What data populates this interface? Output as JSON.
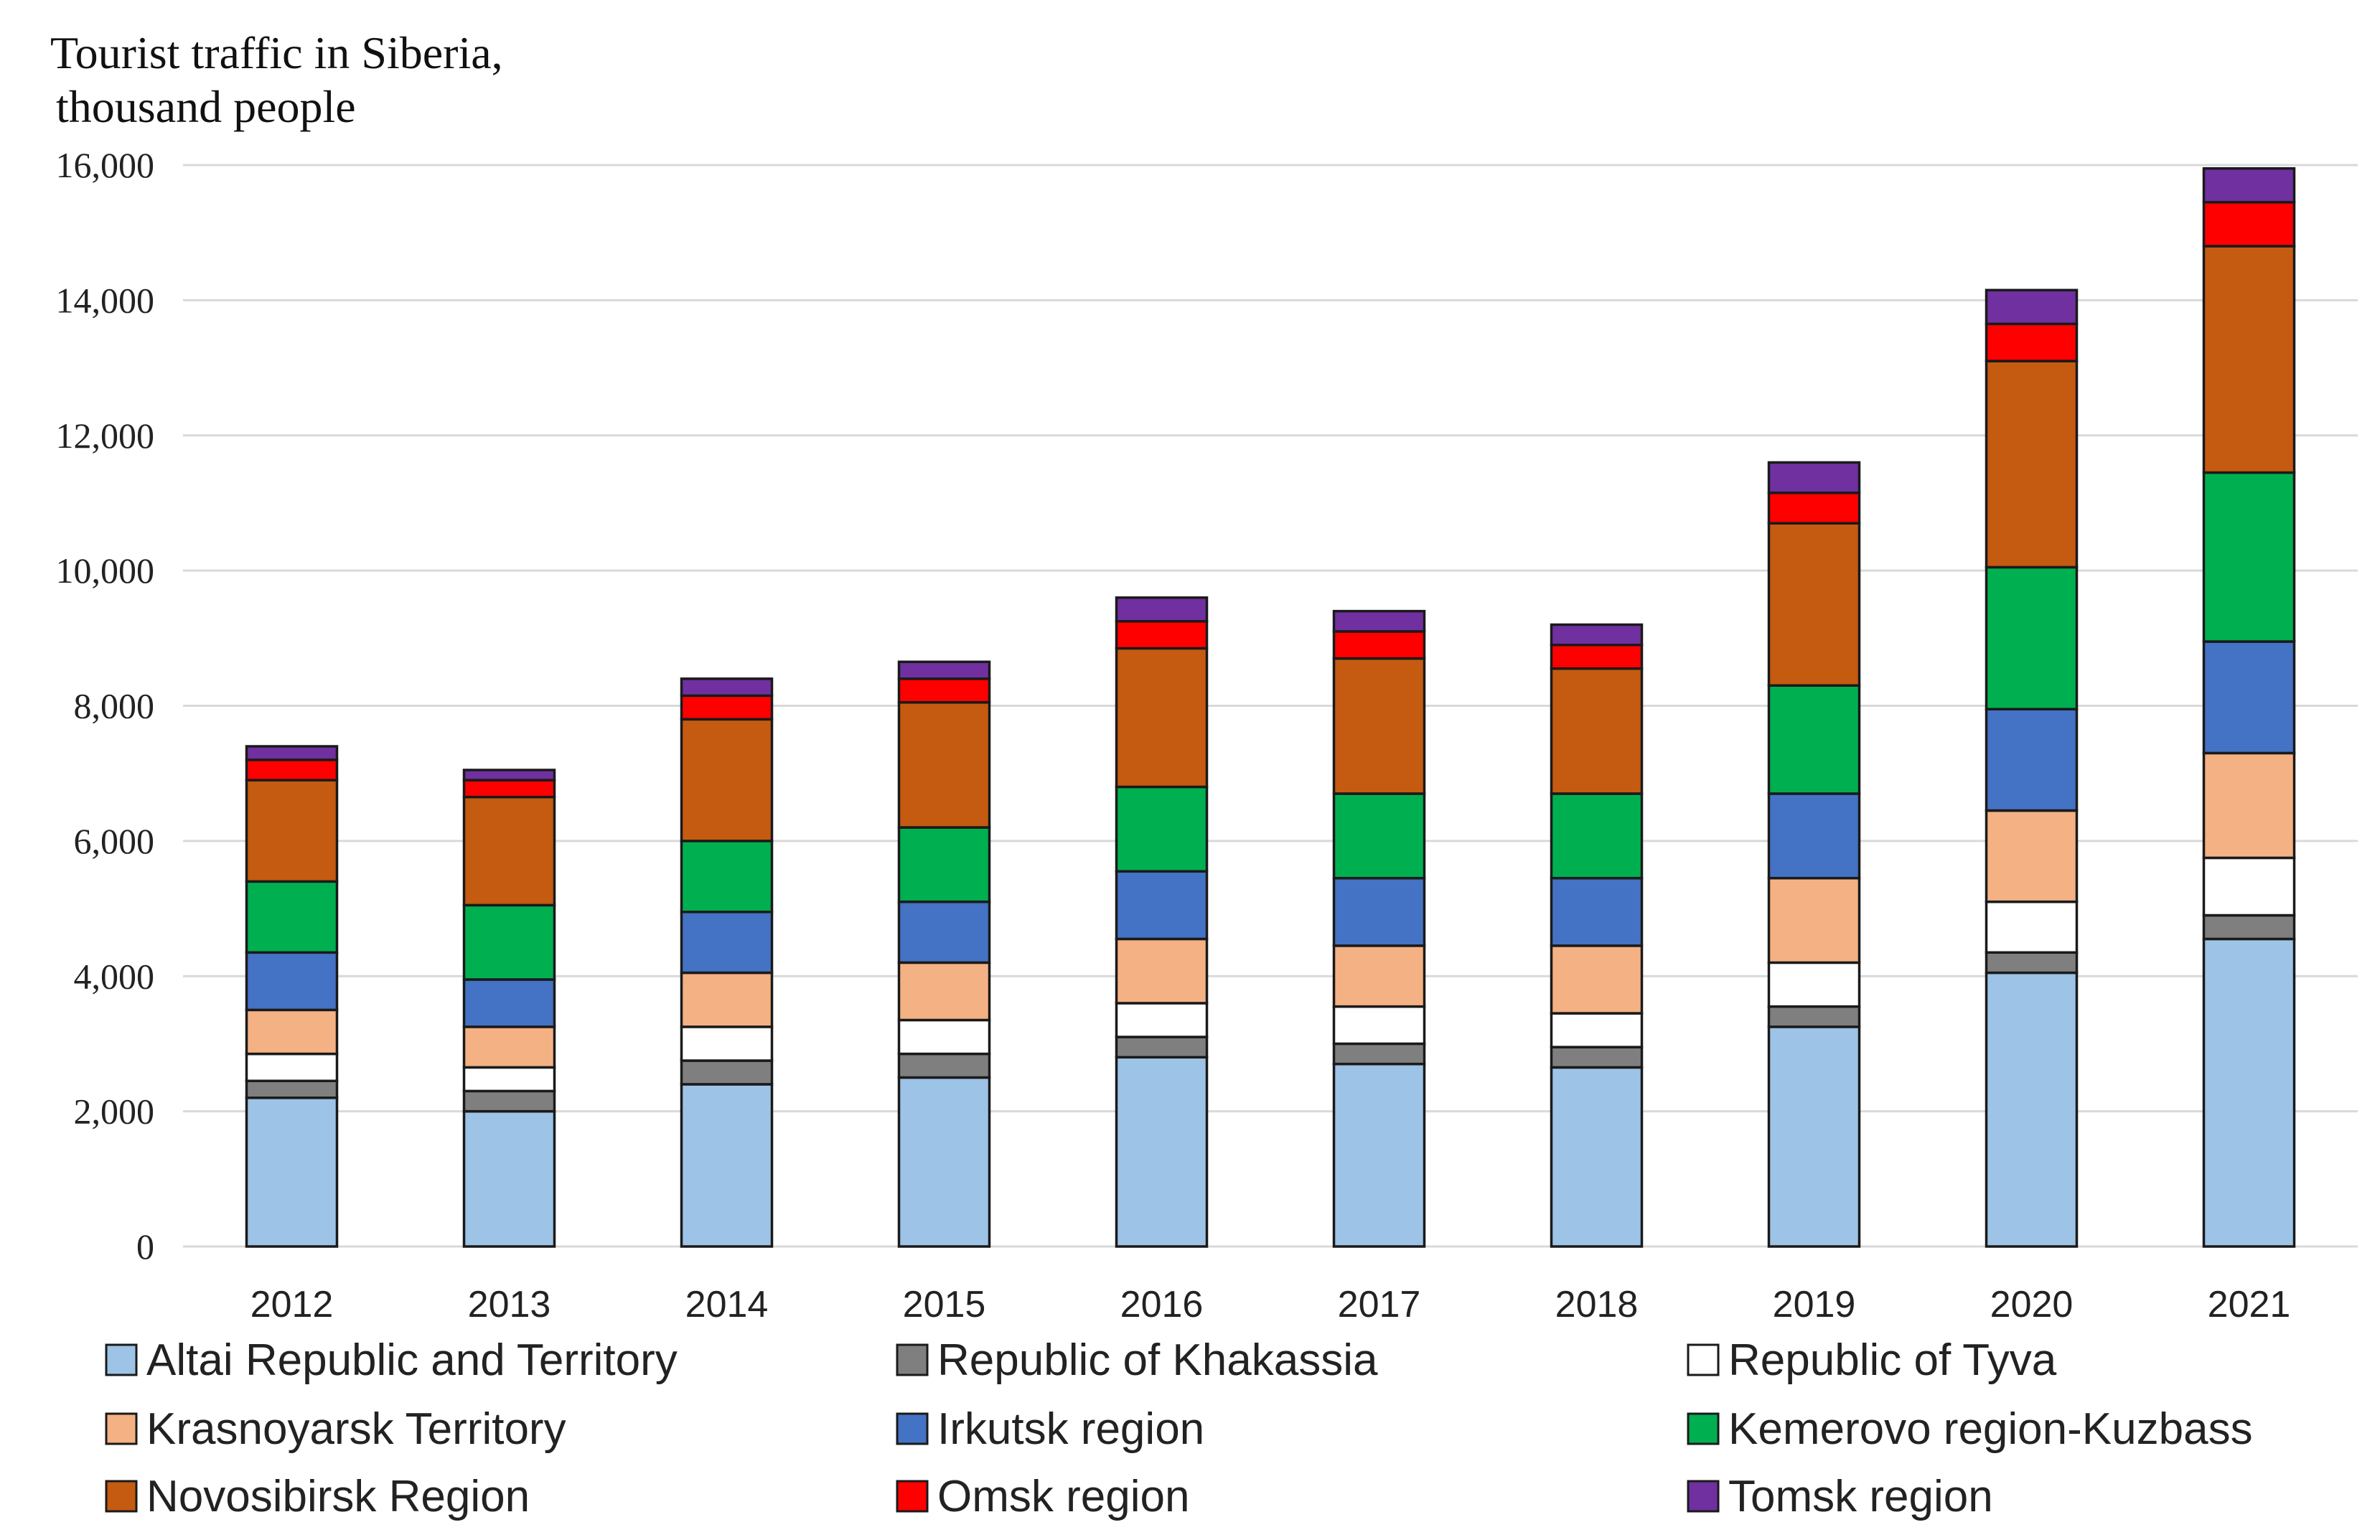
{
  "chart_data": {
    "type": "bar",
    "stacked": true,
    "title": "Tourist traffic in Siberia,",
    "title_line2": "thousand people",
    "xlabel": "",
    "ylabel": "",
    "ylim": [
      0,
      16000
    ],
    "yticks": [
      0,
      2000,
      4000,
      6000,
      8000,
      10000,
      12000,
      14000,
      16000
    ],
    "ytick_labels": [
      "0",
      "2,000",
      "4,000",
      "6,000",
      "8,000",
      "10,000",
      "12,000",
      "14,000",
      "16,000"
    ],
    "grid": true,
    "legend_position": "bottom",
    "categories": [
      "2012",
      "2013",
      "2014",
      "2015",
      "2016",
      "2017",
      "2018",
      "2019",
      "2020",
      "2021"
    ],
    "series": [
      {
        "name": "Altai Republic and Territory",
        "color": "#9dc3e6",
        "values": [
          2200,
          2000,
          2400,
          2500,
          2800,
          2700,
          2650,
          3250,
          4050,
          4550
        ]
      },
      {
        "name": "Republic of Khakassia",
        "color": "#7f7f7f",
        "values": [
          250,
          300,
          350,
          350,
          300,
          300,
          300,
          300,
          300,
          350
        ]
      },
      {
        "name": "Republic of Tyva",
        "color": "#ffffff",
        "values": [
          400,
          350,
          500,
          500,
          500,
          550,
          500,
          650,
          750,
          850
        ]
      },
      {
        "name": "Krasnoyarsk Territory",
        "color": "#f4b183",
        "values": [
          650,
          600,
          800,
          850,
          950,
          900,
          1000,
          1250,
          1350,
          1550
        ]
      },
      {
        "name": "Irkutsk region",
        "color": "#4472c4",
        "values": [
          850,
          700,
          900,
          900,
          1000,
          1000,
          1000,
          1250,
          1500,
          1650
        ]
      },
      {
        "name": "Kemerovo region-Kuzbass",
        "color": "#00b050",
        "values": [
          1050,
          1100,
          1050,
          1100,
          1250,
          1250,
          1250,
          1600,
          2100,
          2500
        ]
      },
      {
        "name": "Novosibirsk Region",
        "color": "#c55a11",
        "values": [
          1500,
          1600,
          1800,
          1850,
          2050,
          2000,
          1850,
          2400,
          3050,
          3350
        ]
      },
      {
        "name": "Omsk region",
        "color": "#ff0000",
        "values": [
          300,
          250,
          350,
          350,
          400,
          400,
          350,
          450,
          550,
          650
        ]
      },
      {
        "name": "Tomsk region",
        "color": "#7030a0",
        "values": [
          200,
          150,
          250,
          250,
          350,
          300,
          300,
          450,
          500,
          500
        ]
      }
    ]
  }
}
